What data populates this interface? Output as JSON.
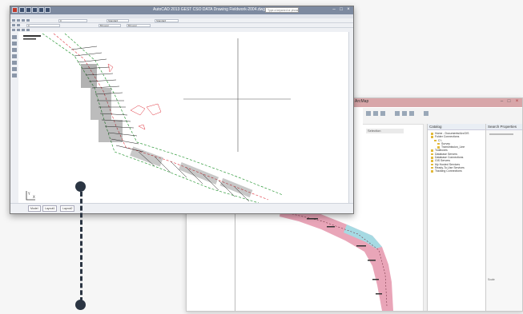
{
  "gis_window": {
    "title": "ArcMap",
    "layer_selector": "Selection",
    "catalog_title": "Catalog",
    "catalog_tree": [
      "Home - Documents\\ArcGIS",
      "Folder Connections",
      "C:\\",
      "Survey",
      "Transmission_Line",
      "Toolboxes",
      "Database Servers",
      "Database Connections",
      "GIS Servers",
      "My Hosted Services",
      "Ready-To-Use Services",
      "Tracking Connections"
    ],
    "props_title": "Search Properties",
    "props_note": "Scale"
  },
  "cad_window": {
    "title": "AutoCAD 2013    GEST CSO DATA Drawing Fieldwork-2004.dwg",
    "search_placeholder": "Type a keyword or phrase",
    "layer_field": "0",
    "style_field": "Standard",
    "color_field": "ByLayer",
    "linetype_field": "ByLayer",
    "tabs": [
      "Model",
      "Layout1",
      "Layout2"
    ]
  },
  "colors": {
    "route_green": "#2e9a3a",
    "route_red": "#e0323c",
    "buffer_pink": "#e8a0b4",
    "buffer_cyan": "#9fe0e8",
    "connector": "#2b3543"
  },
  "icons": {
    "ucs": "ucs-axis-icon",
    "connector_top": "connector-dot-icon",
    "connector_bottom": "connector-dot-icon"
  }
}
